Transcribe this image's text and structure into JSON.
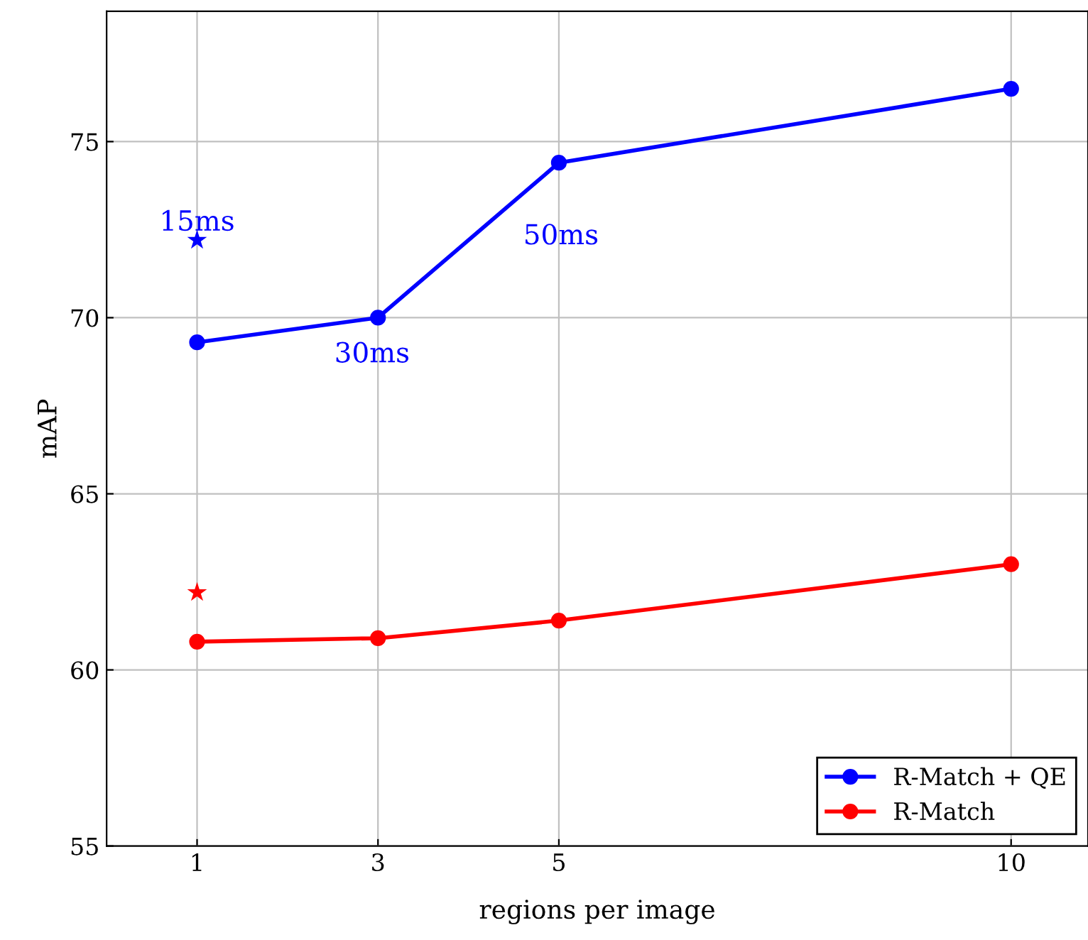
{
  "chart_data": {
    "type": "line",
    "xlabel": "regions per image",
    "ylabel": "mAP",
    "x": [
      1,
      3,
      5,
      10
    ],
    "series": [
      {
        "name": "R-Match + QE",
        "color": "#0000ff",
        "values": [
          69.3,
          70.0,
          74.4,
          76.5
        ],
        "marker": "circle"
      },
      {
        "name": "R-Match",
        "color": "#ff0000",
        "values": [
          60.8,
          60.9,
          61.4,
          63.0
        ],
        "marker": "circle"
      },
      {
        "type": "scatter",
        "color": "#0000ff",
        "x": [
          1
        ],
        "values": [
          72.2
        ],
        "marker": "star"
      },
      {
        "type": "scatter",
        "color": "#ff0000",
        "x": [
          1
        ],
        "values": [
          62.2
        ],
        "marker": "star"
      }
    ],
    "annotations": [
      {
        "text": "15ms",
        "x": 1,
        "y": 72.2
      },
      {
        "text": "30ms",
        "x": 3,
        "y": 70.0
      },
      "50ms"
    ],
    "xlim": [
      0.0,
      10.85
    ],
    "ylim": [
      55,
      78.7
    ],
    "xticks": [
      1,
      3,
      5,
      10
    ],
    "yticks": [
      55,
      60,
      65,
      70,
      75
    ],
    "grid": true,
    "legend": "bottom right",
    "line_style": "solid"
  }
}
